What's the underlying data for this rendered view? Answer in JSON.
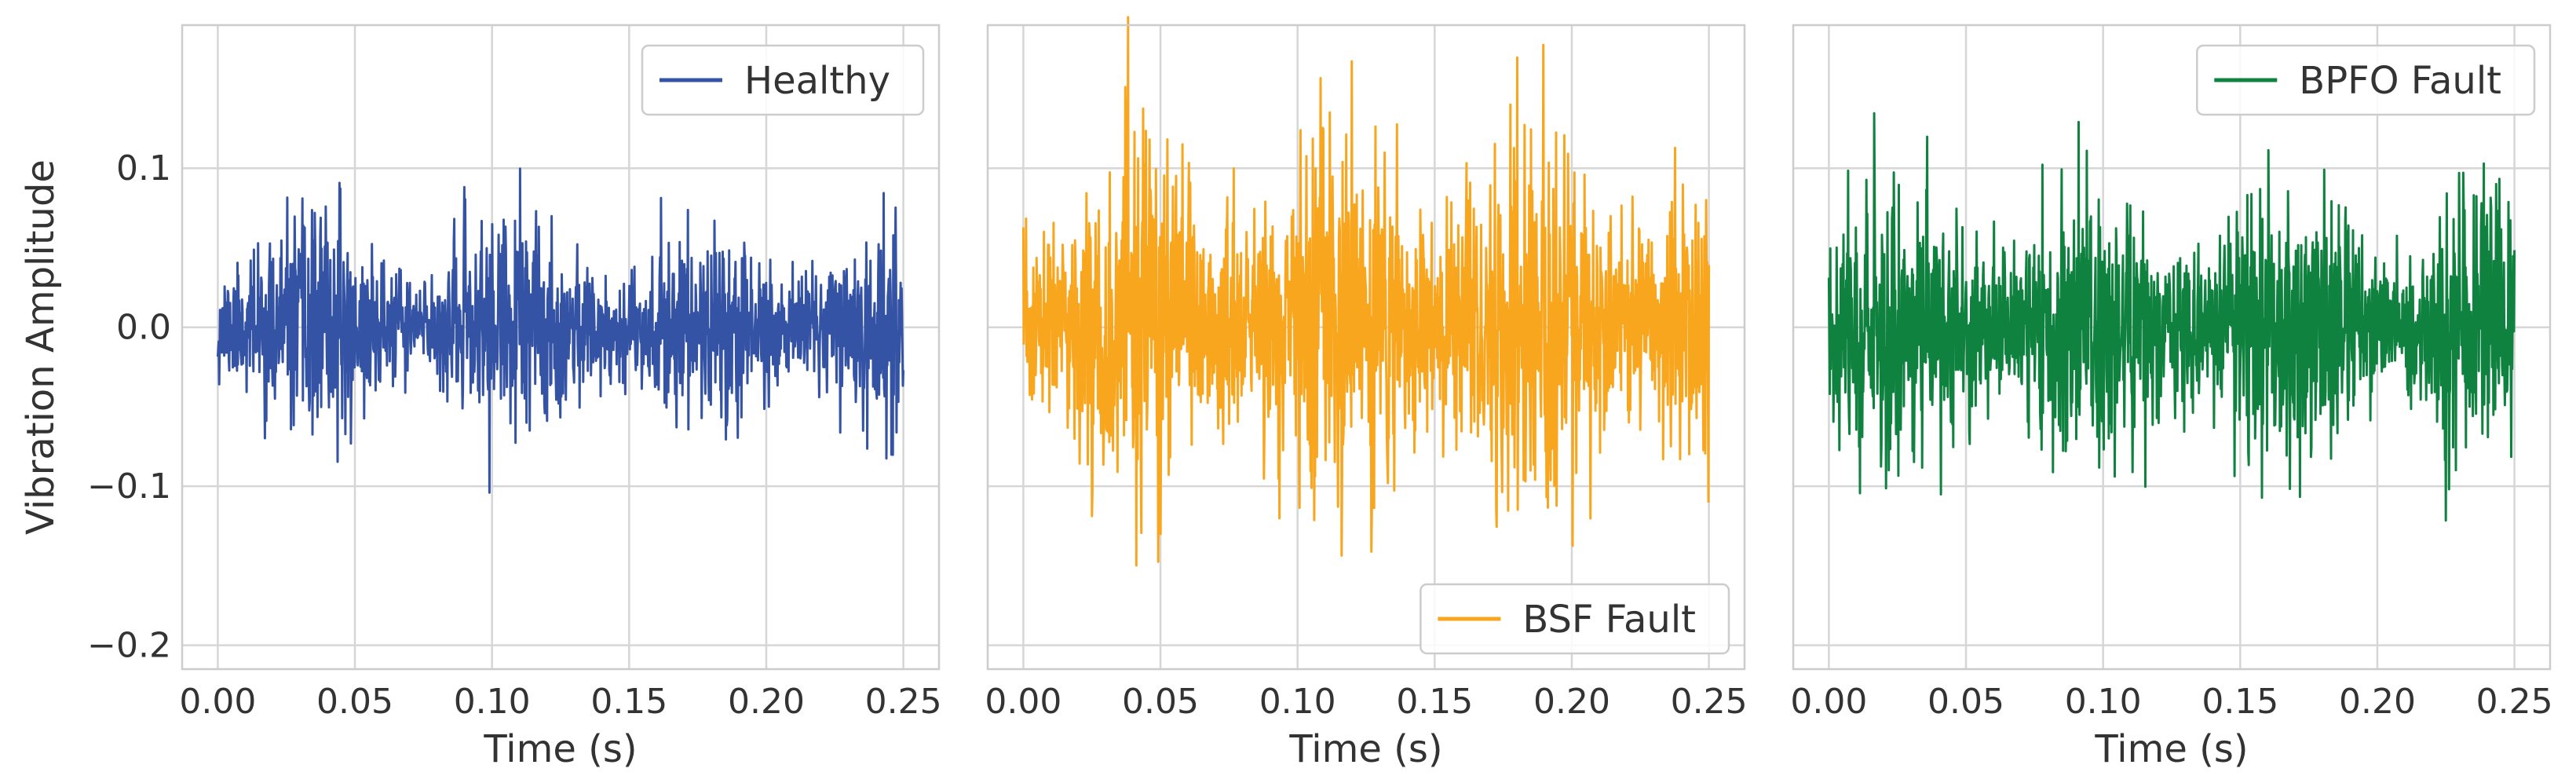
{
  "chart_data": [
    {
      "type": "line",
      "xlabel": "Time (s)",
      "ylabel": "Vibration Amplitude",
      "xlim": [
        -0.013,
        0.263
      ],
      "ylim": [
        -0.215,
        0.19
      ],
      "xticks": [
        0.0,
        0.05,
        0.1,
        0.15,
        0.2,
        0.25
      ],
      "xtick_labels": [
        "0.00",
        "0.05",
        "0.10",
        "0.15",
        "0.20",
        "0.25"
      ],
      "yticks": [
        0.1,
        0.0,
        -0.1,
        -0.2
      ],
      "ytick_labels": [
        "0.1",
        "0.0",
        "−0.1",
        "−0.2"
      ],
      "grid": true,
      "legend_position": "top-right",
      "series": [
        {
          "name": "Healthy",
          "color": "#3553a5",
          "x_start": 0.0,
          "x_end": 0.25,
          "sample_count": 1500,
          "noise_std": 0.025,
          "peak_abs": 0.104,
          "seed": 11
        }
      ]
    },
    {
      "type": "line",
      "xlabel": "Time (s)",
      "ylabel": "",
      "xlim": [
        -0.013,
        0.263
      ],
      "ylim": [
        -0.215,
        0.19
      ],
      "xticks": [
        0.0,
        0.05,
        0.1,
        0.15,
        0.2,
        0.25
      ],
      "xtick_labels": [
        "0.00",
        "0.05",
        "0.10",
        "0.15",
        "0.20",
        "0.25"
      ],
      "yticks": [
        0.1,
        0.0,
        -0.1,
        -0.2
      ],
      "ytick_labels": [],
      "grid": true,
      "legend_position": "bottom-right",
      "series": [
        {
          "name": "BSF Fault",
          "color": "#f9a61f",
          "x_start": 0.0,
          "x_end": 0.25,
          "sample_count": 1500,
          "noise_std": 0.045,
          "peak_abs": 0.195,
          "seed": 23
        }
      ]
    },
    {
      "type": "line",
      "xlabel": "Time (s)",
      "ylabel": "",
      "xlim": [
        -0.013,
        0.263
      ],
      "ylim": [
        -0.215,
        0.19
      ],
      "xticks": [
        0.0,
        0.05,
        0.1,
        0.15,
        0.2,
        0.25
      ],
      "xtick_labels": [
        "0.00",
        "0.05",
        "0.10",
        "0.15",
        "0.20",
        "0.25"
      ],
      "yticks": [
        0.1,
        0.0,
        -0.1,
        -0.2
      ],
      "ytick_labels": [],
      "grid": true,
      "legend_position": "top-right",
      "series": [
        {
          "name": "BPFO Fault",
          "color": "#108240",
          "x_start": 0.0,
          "x_end": 0.25,
          "sample_count": 1500,
          "noise_std": 0.035,
          "peak_abs": 0.15,
          "seed": 37
        }
      ]
    }
  ]
}
